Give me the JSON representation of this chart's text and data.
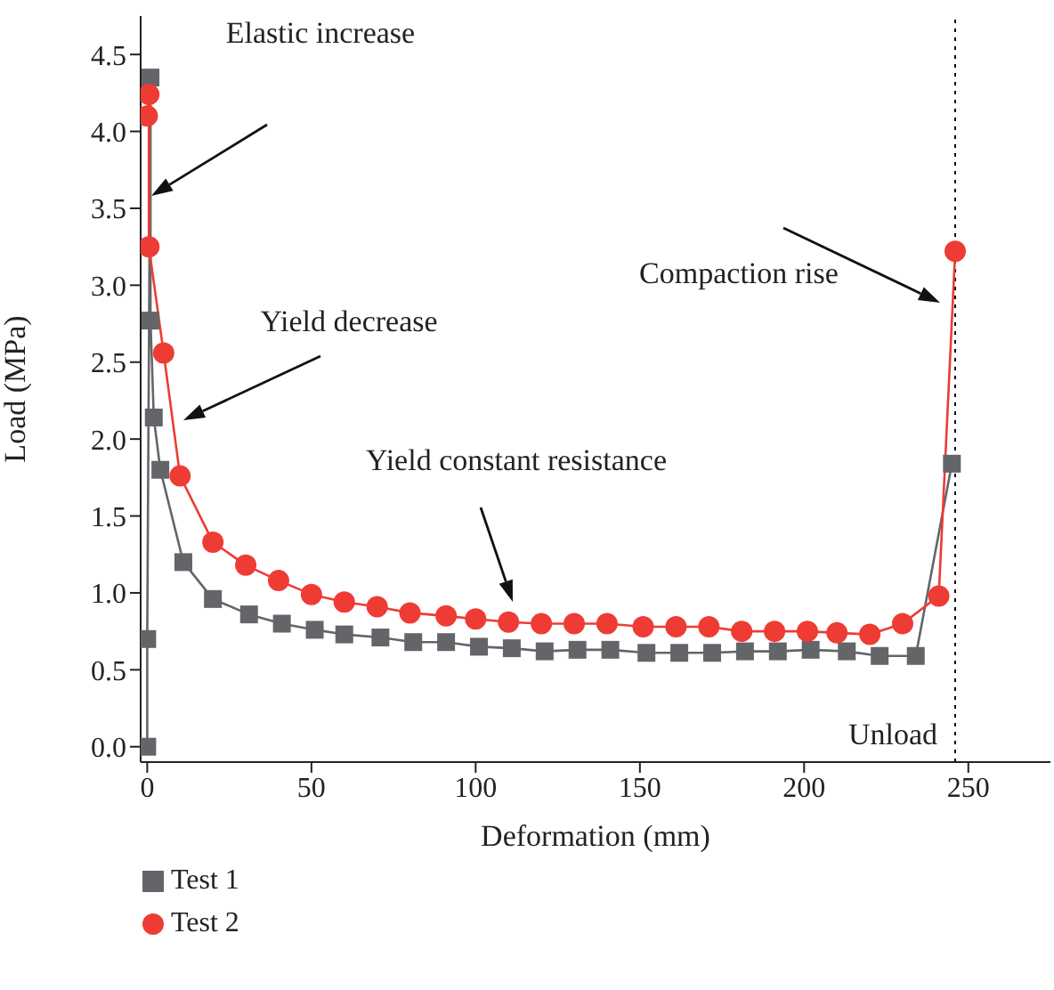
{
  "chart_data": {
    "type": "line",
    "xlabel": "Deformation (mm)",
    "ylabel": "Load (MPa)",
    "xlim": [
      -2,
      275
    ],
    "xticks": [
      0,
      50,
      100,
      150,
      200,
      250
    ],
    "ylim": [
      -0.1,
      4.75
    ],
    "yticks": [
      {
        "value": 0,
        "label": "0.0"
      },
      {
        "value": 0.5,
        "label": "0.5"
      },
      {
        "value": 1,
        "label": "1.0"
      },
      {
        "value": 1.5,
        "label": "1.5"
      },
      {
        "value": 2,
        "label": "2.0"
      },
      {
        "value": 2.5,
        "label": "2.5"
      },
      {
        "value": 3,
        "label": "3.0"
      },
      {
        "value": 3.5,
        "label": "3.5"
      },
      {
        "value": 4,
        "label": "4.0"
      },
      {
        "value": 4.5,
        "label": "4.5"
      }
    ],
    "grid": false,
    "legend": "bottom left",
    "line_style": "solid",
    "series": [
      {
        "name": "Test 1",
        "color": "#646569",
        "marker": "square",
        "x": [
          0,
          0,
          1,
          1,
          2,
          4,
          11,
          20,
          31,
          41,
          51,
          60,
          71,
          81,
          91,
          101,
          111,
          121,
          131,
          141,
          152,
          162,
          172,
          182,
          192,
          202,
          213,
          223,
          234,
          245
        ],
        "values": [
          0,
          0.7,
          4.35,
          2.77,
          2.14,
          1.8,
          1.2,
          0.96,
          0.86,
          0.8,
          0.76,
          0.73,
          0.71,
          0.68,
          0.68,
          0.65,
          0.64,
          0.62,
          0.63,
          0.63,
          0.61,
          0.61,
          0.61,
          0.62,
          0.62,
          0.63,
          0.62,
          0.59,
          0.59,
          1.84
        ]
      },
      {
        "name": "Test 2",
        "color": "#ee3b34",
        "marker": "circle",
        "x": [
          0,
          0.5,
          0.5,
          5,
          10,
          20,
          30,
          40,
          50,
          60,
          70,
          80,
          91,
          100,
          110,
          120,
          130,
          140,
          151,
          161,
          171,
          181,
          191,
          201,
          210,
          220,
          230,
          241,
          246
        ],
        "values": [
          4.1,
          4.24,
          3.25,
          2.56,
          1.76,
          1.33,
          1.18,
          1.08,
          0.99,
          0.94,
          0.91,
          0.87,
          0.85,
          0.83,
          0.81,
          0.8,
          0.8,
          0.8,
          0.78,
          0.78,
          0.78,
          0.75,
          0.75,
          0.75,
          0.74,
          0.73,
          0.8,
          0.98,
          3.22
        ]
      }
    ],
    "ref_lines": [
      {
        "axis": "x",
        "value": 246,
        "label": "Unload",
        "line_style": "dotted",
        "color": "#000000"
      }
    ],
    "annotations": [
      "Elastic increase",
      "Yield decrease",
      "Yield constant resistance",
      "Compaction rise"
    ]
  }
}
